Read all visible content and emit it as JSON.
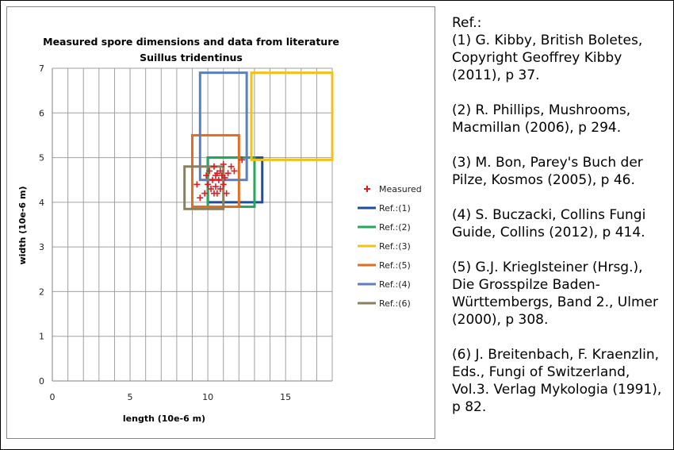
{
  "refs_panel": {
    "header": "Ref.:",
    "items": [
      "(1) G. Kibby, British Boletes, Copyright Geoffrey Kibby (2011), p 37.",
      "(2) R. Phillips, Mushrooms, Macmillan (2006), p 294.",
      "(3) M. Bon, Parey's Buch der Pilze, Kosmos (2005), p 46.",
      "(4) S. Buczacki, Collins Fungi Guide, Collins (2012), p 414.",
      "(5) G.J. Krieglsteiner (Hrsg.), Die Grosspilze Baden-Württembergs, Band 2., Ulmer (2000), p 308.",
      "(6) J. Breitenbach, F. Kraenzlin, Eds., Fungi of Switzerland, Vol.3. Verlag Mykologia (1991), p 82."
    ]
  },
  "chart_data": {
    "type": "scatter",
    "title": "Measured spore dimensions and data from literature",
    "subtitle": "Suillus tridentinus",
    "xlabel": "length (10e-6 m)",
    "ylabel": "width (10e-6 m)",
    "xlim": [
      0,
      18
    ],
    "ylim": [
      0,
      7
    ],
    "x_ticks": [
      0,
      5,
      10,
      15
    ],
    "y_ticks": [
      0,
      1,
      2,
      3,
      4,
      5,
      6,
      7
    ],
    "x_minor_step": 1,
    "grid": true,
    "legend_position": "right",
    "measured": {
      "name": "Measured",
      "color": "#e41a1c",
      "marker": "+",
      "points": [
        [
          9.3,
          4.4
        ],
        [
          9.5,
          4.1
        ],
        [
          9.8,
          4.2
        ],
        [
          9.9,
          4.6
        ],
        [
          10.0,
          4.4
        ],
        [
          10.1,
          4.7
        ],
        [
          10.2,
          4.3
        ],
        [
          10.3,
          4.5
        ],
        [
          10.4,
          4.2
        ],
        [
          10.4,
          4.8
        ],
        [
          10.5,
          4.6
        ],
        [
          10.5,
          4.35
        ],
        [
          10.6,
          4.65
        ],
        [
          10.6,
          4.2
        ],
        [
          10.7,
          4.5
        ],
        [
          10.8,
          4.3
        ],
        [
          10.8,
          4.7
        ],
        [
          10.9,
          4.6
        ],
        [
          11.0,
          4.4
        ],
        [
          11.0,
          4.85
        ],
        [
          11.1,
          4.55
        ],
        [
          11.2,
          4.2
        ],
        [
          11.3,
          4.65
        ],
        [
          11.5,
          4.8
        ],
        [
          11.7,
          4.7
        ],
        [
          12.2,
          4.95
        ]
      ]
    },
    "reference_ranges": [
      {
        "name": "Ref.:(1)",
        "color": "#1f4e9c",
        "x_range": [
          10,
          13.5
        ],
        "y_range": [
          4,
          5
        ]
      },
      {
        "name": "Ref.:(2)",
        "color": "#22a95a",
        "x_range": [
          10,
          13
        ],
        "y_range": [
          3.9,
          5
        ]
      },
      {
        "name": "Ref.:(3)",
        "color": "#f2c21a",
        "x_range": [
          12.8,
          18
        ],
        "y_range": [
          4.95,
          6.9
        ]
      },
      {
        "name": "Ref.:(5)",
        "color": "#e36c1e",
        "x_range": [
          9,
          12
        ],
        "y_range": [
          3.9,
          5.5
        ]
      },
      {
        "name": "Ref.:(4)",
        "color": "#5b7fbf",
        "x_range": [
          9.5,
          12.5
        ],
        "y_range": [
          4.5,
          6.9
        ]
      },
      {
        "name": "Ref.:(6)",
        "color": "#8a7f5e",
        "x_range": [
          8.5,
          11
        ],
        "y_range": [
          3.85,
          4.8
        ]
      }
    ]
  }
}
